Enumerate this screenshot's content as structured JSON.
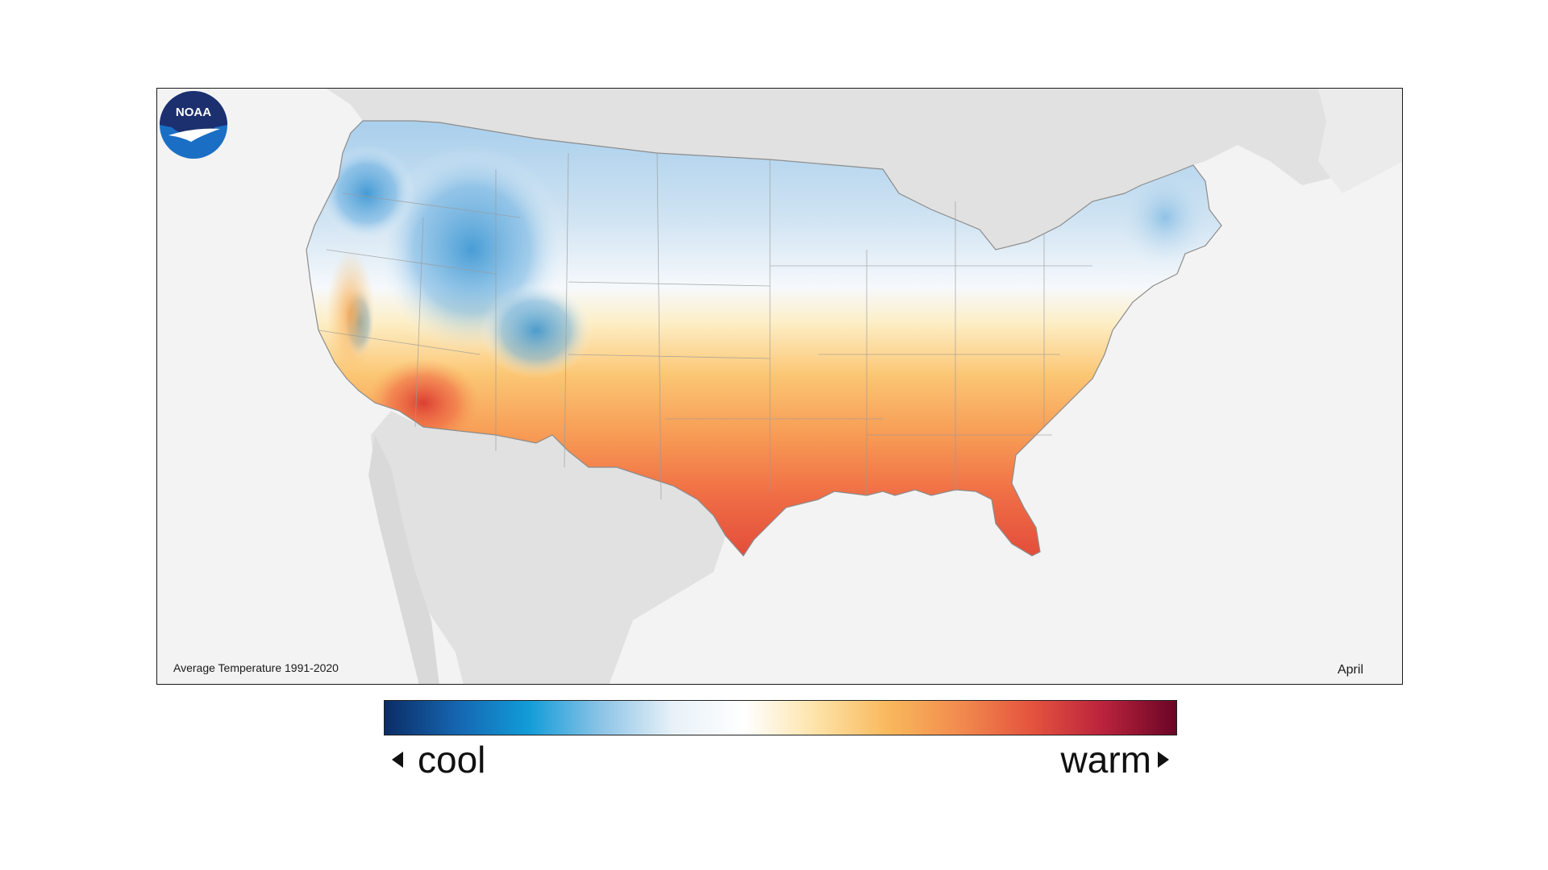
{
  "map": {
    "caption": "Average Temperature 1991-2020",
    "month": "April",
    "logo_text": "NOAA",
    "background_color": "#f3f3f3",
    "land_neighbor_color": "#e1e1e1"
  },
  "legend": {
    "cool_label": "cool",
    "warm_label": "warm",
    "colors": [
      "#0b2d66",
      "#1565b0",
      "#129cd8",
      "#8cc4e6",
      "#e8f1f8",
      "#ffffff",
      "#fde3a8",
      "#f9b85c",
      "#f28b4e",
      "#e4533e",
      "#b9223c",
      "#6a0526"
    ]
  }
}
